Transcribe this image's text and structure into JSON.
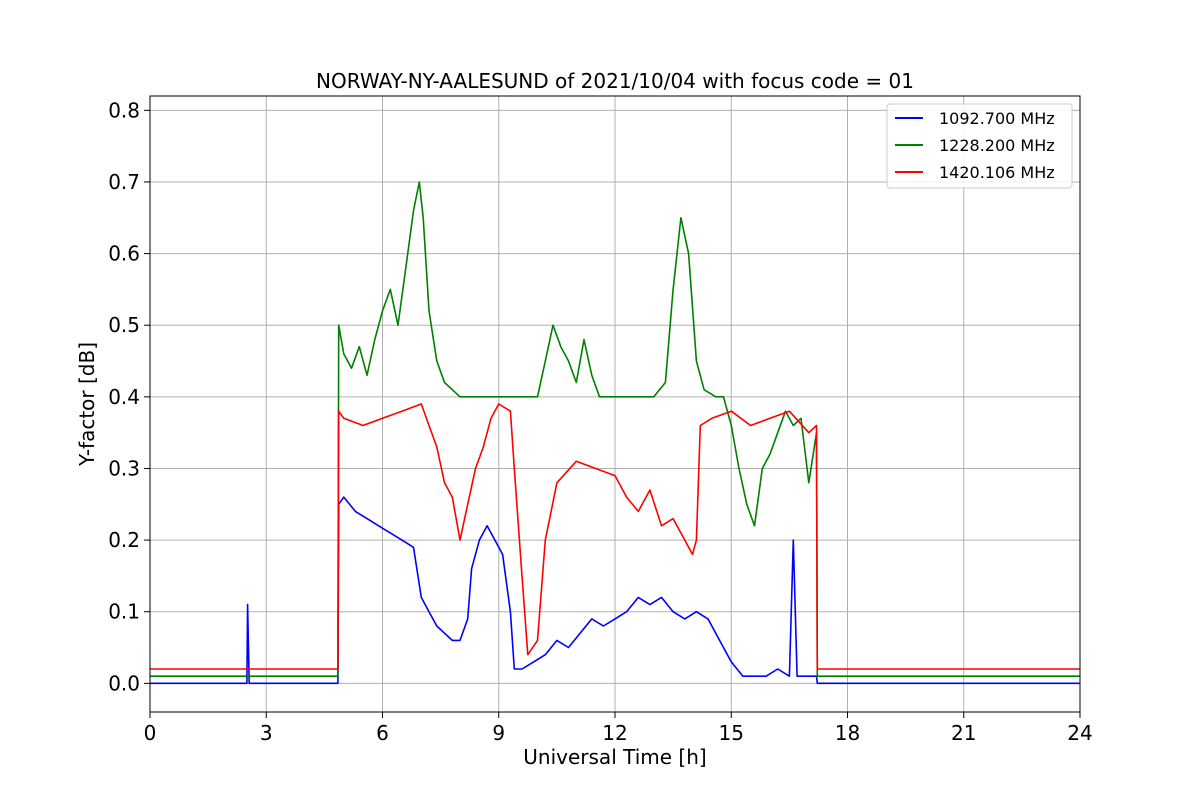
{
  "chart_data": {
    "type": "line",
    "title": "NORWAY-NY-AALESUND of 2021/10/04 with focus code = 01",
    "xlabel": "Universal Time [h]",
    "ylabel": "Y-factor [dB]",
    "xlim": [
      0,
      24
    ],
    "ylim": [
      -0.04,
      0.82
    ],
    "xticks": [
      0,
      3,
      6,
      9,
      12,
      15,
      18,
      21,
      24
    ],
    "yticks": [
      0.0,
      0.1,
      0.2,
      0.3,
      0.4,
      0.5,
      0.6,
      0.7,
      0.8
    ],
    "xtick_labels": [
      "0",
      "3",
      "6",
      "9",
      "12",
      "15",
      "18",
      "21",
      "24"
    ],
    "ytick_labels": [
      "0.0",
      "0.1",
      "0.2",
      "0.3",
      "0.4",
      "0.5",
      "0.6",
      "0.7",
      "0.8"
    ],
    "grid": true,
    "legend_position": "top-right",
    "series": [
      {
        "name": "1092.700 MHz",
        "color": "#0000ff",
        "x": [
          0,
          2.5,
          2.52,
          2.56,
          4.85,
          4.87,
          5.0,
          5.3,
          5.6,
          5.9,
          6.2,
          6.5,
          6.8,
          7.0,
          7.2,
          7.4,
          7.6,
          7.8,
          8.0,
          8.2,
          8.3,
          8.5,
          8.7,
          8.9,
          9.1,
          9.3,
          9.4,
          9.6,
          9.9,
          10.2,
          10.5,
          10.8,
          11.1,
          11.4,
          11.7,
          12.0,
          12.3,
          12.6,
          12.9,
          13.2,
          13.5,
          13.8,
          14.1,
          14.4,
          14.7,
          15.0,
          15.3,
          15.6,
          15.9,
          16.2,
          16.5,
          16.6,
          16.7,
          16.9,
          17.2,
          17.22,
          18,
          21,
          24
        ],
        "y": [
          0.0,
          0.0,
          0.11,
          0.0,
          0.0,
          0.25,
          0.26,
          0.24,
          0.23,
          0.22,
          0.21,
          0.2,
          0.19,
          0.12,
          0.1,
          0.08,
          0.07,
          0.06,
          0.06,
          0.09,
          0.16,
          0.2,
          0.22,
          0.2,
          0.18,
          0.1,
          0.02,
          0.02,
          0.03,
          0.04,
          0.06,
          0.05,
          0.07,
          0.09,
          0.08,
          0.09,
          0.1,
          0.12,
          0.11,
          0.12,
          0.1,
          0.09,
          0.1,
          0.09,
          0.06,
          0.03,
          0.01,
          0.01,
          0.01,
          0.02,
          0.01,
          0.2,
          0.01,
          0.01,
          0.01,
          0.0,
          0.0,
          0.0,
          0.0
        ]
      },
      {
        "name": "1228.200 MHz",
        "color": "#008000",
        "x": [
          0,
          4.85,
          4.87,
          5.0,
          5.2,
          5.4,
          5.6,
          5.8,
          6.0,
          6.2,
          6.4,
          6.6,
          6.8,
          6.95,
          7.05,
          7.2,
          7.4,
          7.6,
          7.8,
          8.0,
          8.2,
          8.4,
          8.6,
          9.0,
          9.6,
          9.8,
          10.0,
          10.2,
          10.4,
          10.6,
          10.8,
          11.0,
          11.2,
          11.4,
          11.6,
          12.0,
          12.5,
          13.0,
          13.3,
          13.5,
          13.7,
          13.9,
          14.1,
          14.3,
          14.6,
          14.8,
          15.0,
          15.2,
          15.4,
          15.6,
          15.8,
          16.0,
          16.2,
          16.4,
          16.6,
          16.8,
          17.0,
          17.2,
          17.22,
          18,
          21,
          24
        ],
        "y": [
          0.01,
          0.01,
          0.5,
          0.46,
          0.44,
          0.47,
          0.43,
          0.48,
          0.52,
          0.55,
          0.5,
          0.58,
          0.66,
          0.7,
          0.65,
          0.52,
          0.45,
          0.42,
          0.41,
          0.4,
          0.4,
          0.4,
          0.4,
          0.4,
          0.4,
          0.4,
          0.4,
          0.45,
          0.5,
          0.47,
          0.45,
          0.42,
          0.48,
          0.43,
          0.4,
          0.4,
          0.4,
          0.4,
          0.42,
          0.55,
          0.65,
          0.6,
          0.45,
          0.41,
          0.4,
          0.4,
          0.36,
          0.3,
          0.25,
          0.22,
          0.3,
          0.32,
          0.35,
          0.38,
          0.36,
          0.37,
          0.28,
          0.35,
          0.01,
          0.01,
          0.01,
          0.01
        ]
      },
      {
        "name": "1420.106 MHz",
        "color": "#ff0000",
        "x": [
          0,
          4.85,
          4.87,
          5.0,
          5.5,
          6.0,
          6.5,
          7.0,
          7.2,
          7.4,
          7.6,
          7.8,
          8.0,
          8.2,
          8.4,
          8.6,
          8.8,
          9.0,
          9.3,
          9.4,
          9.6,
          9.75,
          10.0,
          10.2,
          10.5,
          11.0,
          11.5,
          12.0,
          12.3,
          12.6,
          12.9,
          13.2,
          13.5,
          13.8,
          14.0,
          14.1,
          14.2,
          14.5,
          15.0,
          15.5,
          16.0,
          16.5,
          17.0,
          17.2,
          17.22,
          18,
          21,
          24
        ],
        "y": [
          0.02,
          0.02,
          0.38,
          0.37,
          0.36,
          0.37,
          0.38,
          0.39,
          0.36,
          0.33,
          0.28,
          0.26,
          0.2,
          0.25,
          0.3,
          0.33,
          0.37,
          0.39,
          0.38,
          0.3,
          0.15,
          0.04,
          0.06,
          0.2,
          0.28,
          0.31,
          0.3,
          0.29,
          0.26,
          0.24,
          0.27,
          0.22,
          0.23,
          0.2,
          0.18,
          0.2,
          0.36,
          0.37,
          0.38,
          0.36,
          0.37,
          0.38,
          0.35,
          0.36,
          0.02,
          0.02,
          0.02,
          0.02
        ]
      }
    ]
  }
}
